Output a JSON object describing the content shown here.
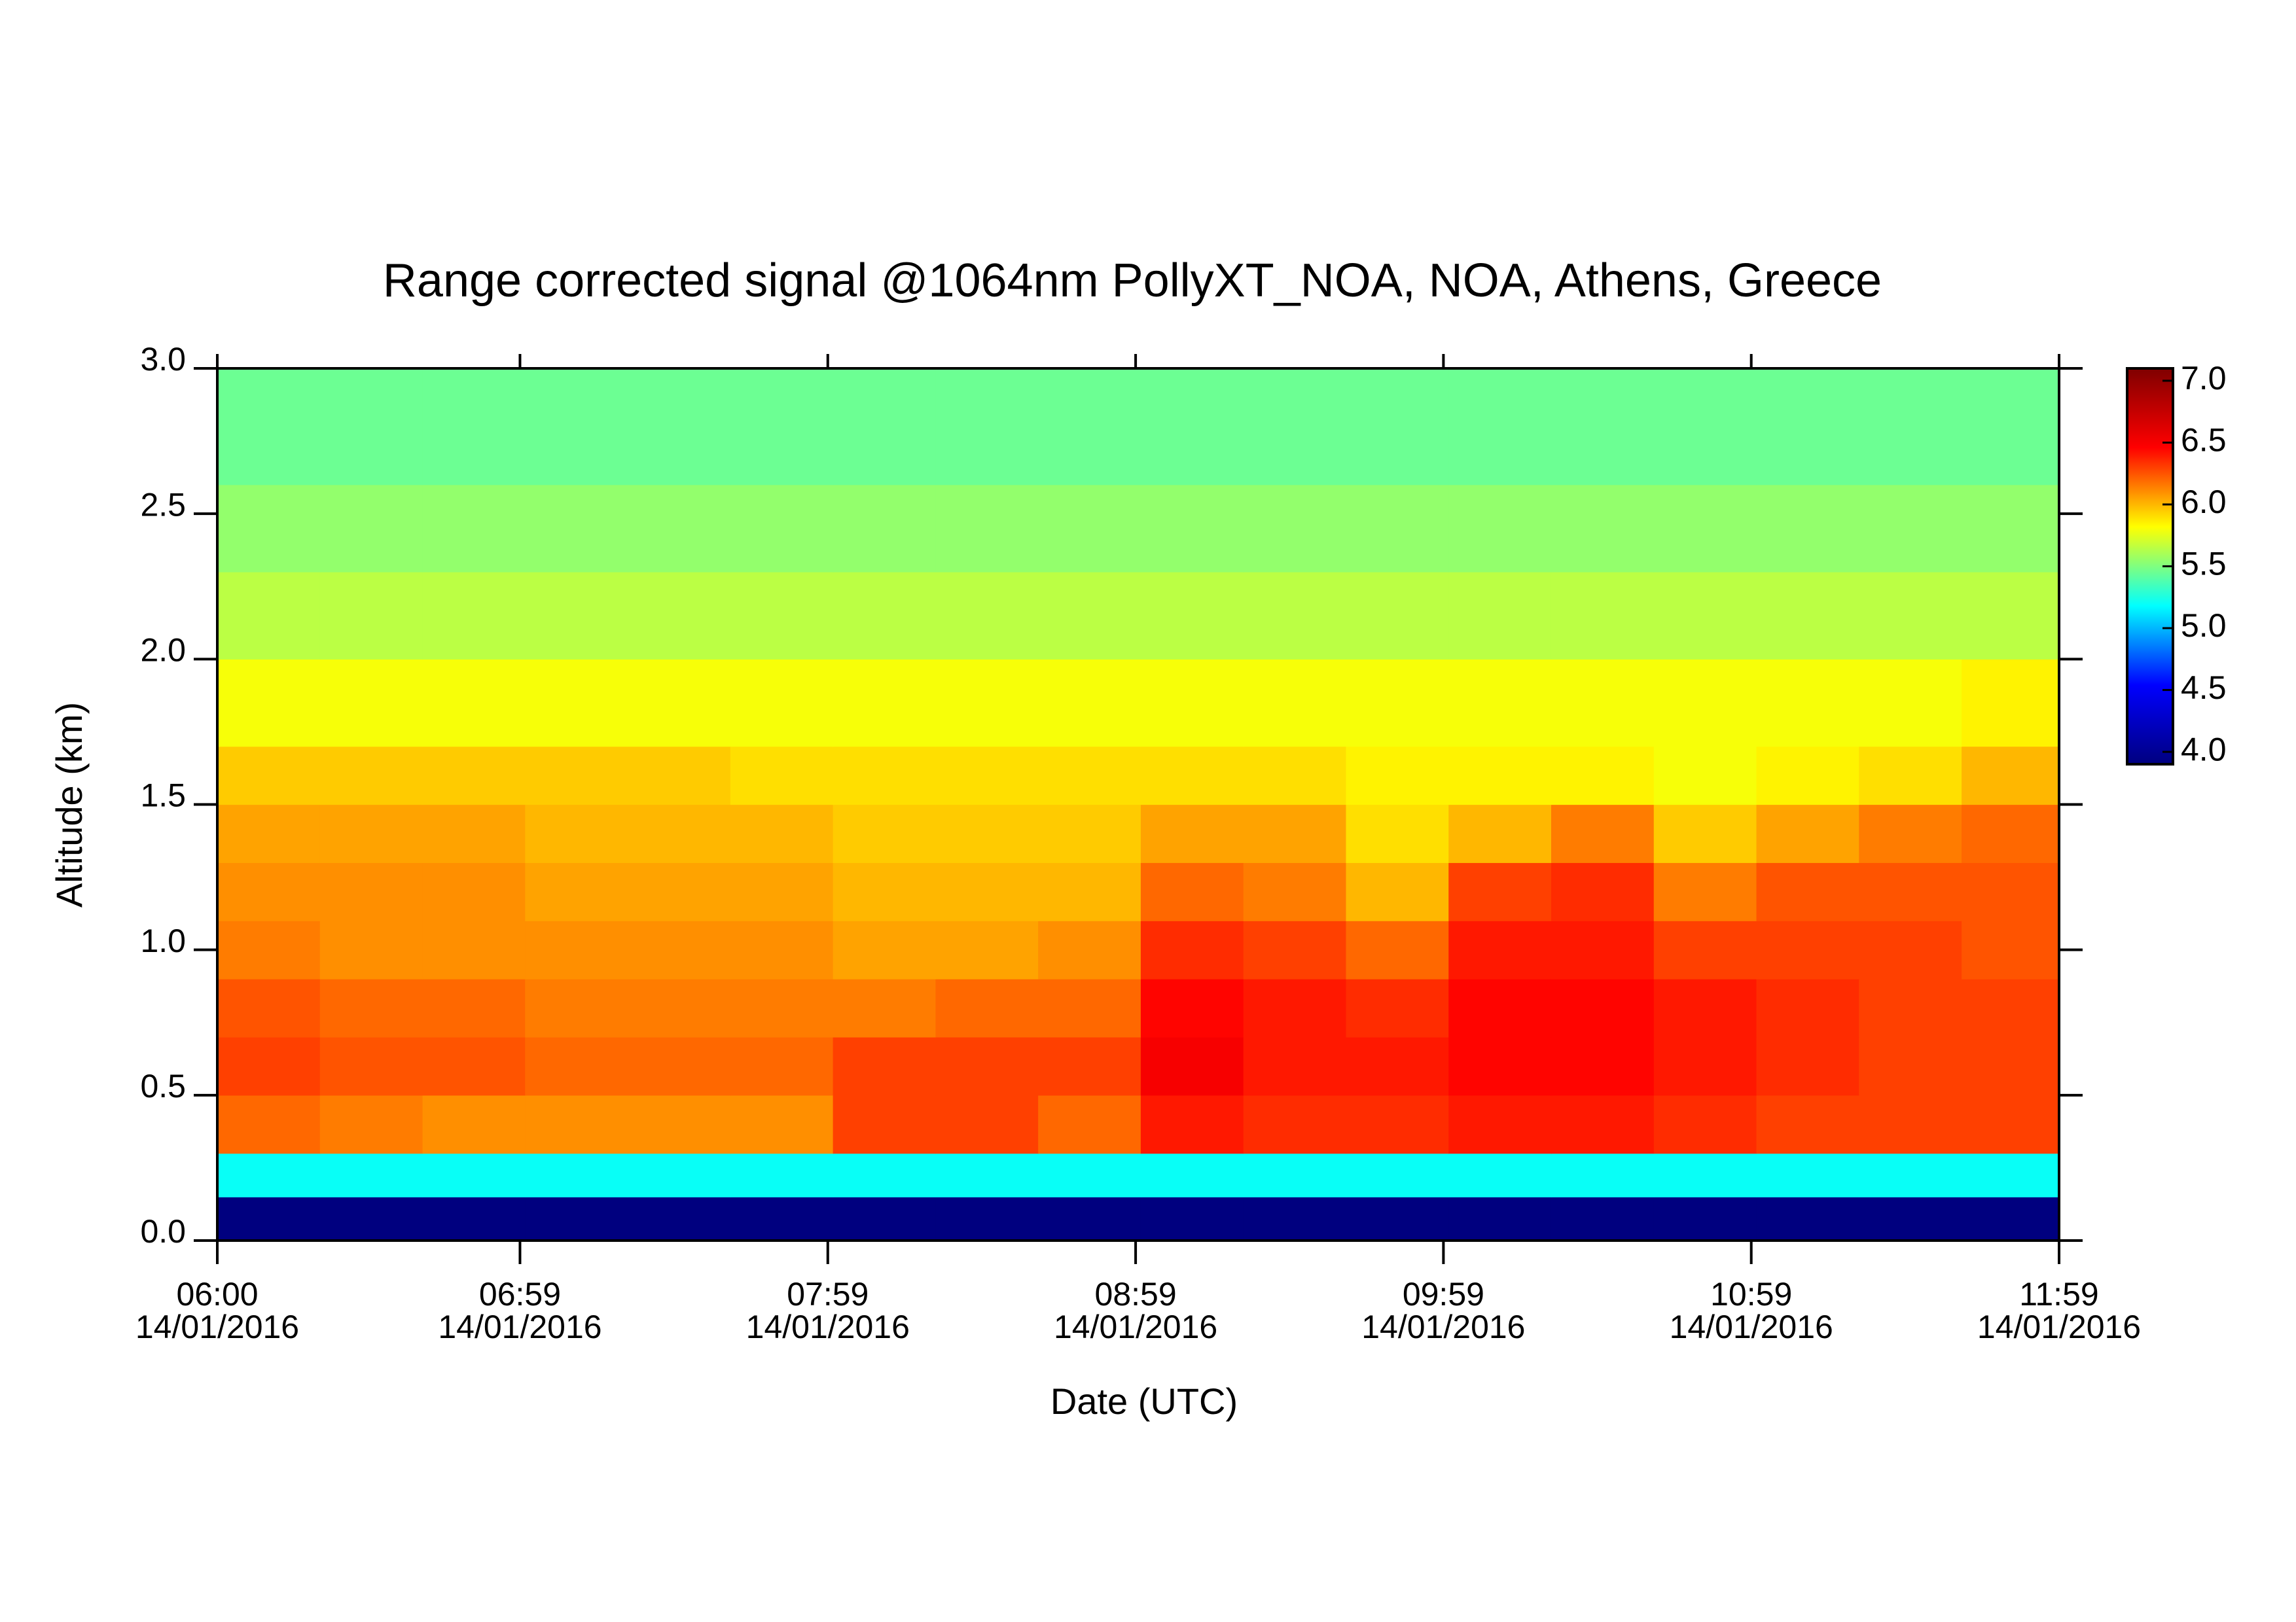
{
  "chart_data": {
    "type": "heatmap",
    "title": "Range corrected signal @1064nm  PollyXT_NOA, NOA, Athens, Greece",
    "x_label": "Date (UTC)",
    "y_label": "Altitude (km)",
    "x_tick_date": "14/01/2016",
    "xlim": [
      "06:00",
      "11:59"
    ],
    "xticks": [
      "06:00",
      "06:59",
      "07:59",
      "08:59",
      "09:59",
      "10:59",
      "11:59"
    ],
    "ylim": [
      0,
      3.0
    ],
    "yticks": [
      {
        "value": 0,
        "label": "0.0"
      },
      0.5,
      {
        "value": 1,
        "label": "1.0"
      },
      1.5,
      {
        "value": 2,
        "label": "2.0"
      },
      2.5,
      {
        "value": 3,
        "label": "3.0"
      }
    ],
    "zlim": [
      3.9,
      7.1
    ],
    "zticks": [
      {
        "value": 4,
        "label": "4.0"
      },
      4.5,
      {
        "value": 5,
        "label": "5.0"
      },
      5.5,
      {
        "value": 6,
        "label": "6.0"
      },
      6.5,
      {
        "value": 7,
        "label": "7.0"
      }
    ],
    "colormap": [
      "#00007f",
      "#0000ff",
      "#00ffff",
      "#ffff00",
      "#ff0000",
      "#7f0000"
    ],
    "x_bins": [
      "06:00",
      "06:20",
      "06:40",
      "07:00",
      "07:20",
      "07:40",
      "08:00",
      "08:20",
      "08:40",
      "09:00",
      "09:20",
      "09:40",
      "10:00",
      "10:20",
      "10:40",
      "11:00",
      "11:20",
      "11:40",
      "11:59"
    ],
    "y_bins": [
      0,
      0.15,
      0.3,
      0.5,
      0.7,
      0.9,
      1.1,
      1.3,
      1.5,
      1.7,
      2.0,
      2.3,
      2.6,
      3.0
    ],
    "z": [
      [
        3.9,
        3.9,
        3.9,
        3.9,
        3.9,
        3.9,
        3.9,
        3.9,
        3.9,
        3.9,
        3.9,
        3.9,
        3.9,
        3.9,
        3.9,
        3.9,
        3.9,
        3.9
      ],
      [
        5.2,
        5.2,
        5.2,
        5.2,
        5.2,
        5.2,
        5.2,
        5.2,
        5.2,
        5.2,
        5.2,
        5.2,
        5.2,
        5.2,
        5.2,
        5.2,
        5.2,
        5.2
      ],
      [
        6.2,
        6.15,
        6.1,
        6.1,
        6.1,
        6.1,
        6.3,
        6.3,
        6.2,
        6.4,
        6.35,
        6.35,
        6.4,
        6.4,
        6.35,
        6.3,
        6.3,
        6.3
      ],
      [
        6.3,
        6.25,
        6.25,
        6.2,
        6.2,
        6.2,
        6.3,
        6.3,
        6.3,
        6.5,
        6.4,
        6.4,
        6.45,
        6.45,
        6.4,
        6.35,
        6.3,
        6.3
      ],
      [
        6.25,
        6.2,
        6.2,
        6.15,
        6.15,
        6.15,
        6.15,
        6.2,
        6.2,
        6.45,
        6.4,
        6.35,
        6.45,
        6.45,
        6.4,
        6.35,
        6.3,
        6.3
      ],
      [
        6.15,
        6.1,
        6.1,
        6.1,
        6.1,
        6.1,
        6.05,
        6.05,
        6.1,
        6.35,
        6.3,
        6.2,
        6.4,
        6.4,
        6.3,
        6.3,
        6.3,
        6.25
      ],
      [
        6.1,
        6.1,
        6.1,
        6.05,
        6.05,
        6.05,
        6.0,
        6.0,
        6.0,
        6.2,
        6.15,
        6.0,
        6.3,
        6.35,
        6.15,
        6.25,
        6.25,
        6.25
      ],
      [
        6.05,
        6.05,
        6.05,
        6.0,
        6.0,
        6.0,
        5.95,
        5.95,
        5.95,
        6.05,
        6.05,
        5.9,
        6.0,
        6.15,
        5.95,
        6.05,
        6.15,
        6.2
      ],
      [
        5.95,
        5.95,
        5.95,
        5.95,
        5.95,
        5.9,
        5.9,
        5.9,
        5.9,
        5.9,
        5.9,
        5.85,
        5.85,
        5.85,
        5.8,
        5.85,
        5.9,
        6.0
      ],
      [
        5.8,
        5.8,
        5.8,
        5.8,
        5.8,
        5.8,
        5.8,
        5.8,
        5.8,
        5.8,
        5.8,
        5.8,
        5.8,
        5.8,
        5.8,
        5.8,
        5.8,
        5.85
      ],
      [
        5.65,
        5.65,
        5.65,
        5.65,
        5.65,
        5.65,
        5.65,
        5.65,
        5.65,
        5.65,
        5.65,
        5.65,
        5.65,
        5.65,
        5.65,
        5.65,
        5.65,
        5.65
      ],
      [
        5.55,
        5.55,
        5.55,
        5.55,
        5.55,
        5.55,
        5.55,
        5.55,
        5.55,
        5.55,
        5.55,
        5.55,
        5.55,
        5.55,
        5.55,
        5.55,
        5.55,
        5.55
      ],
      [
        5.45,
        5.45,
        5.45,
        5.45,
        5.45,
        5.45,
        5.45,
        5.45,
        5.45,
        5.45,
        5.45,
        5.45,
        5.45,
        5.45,
        5.45,
        5.45,
        5.45,
        5.45
      ]
    ]
  }
}
